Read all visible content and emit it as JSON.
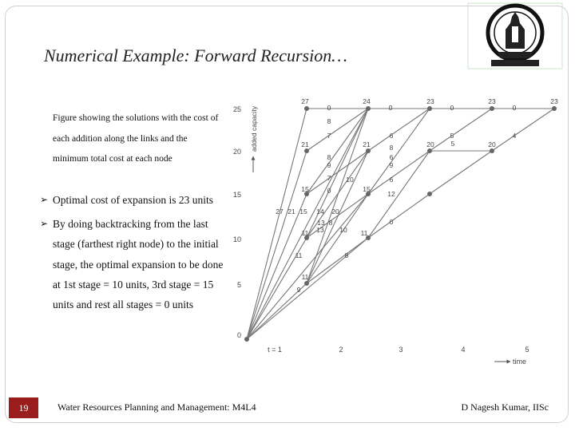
{
  "slide": {
    "title": "Numerical Example: Forward Recursion…",
    "caption": "Figure showing the solutions with the cost of each addition along the links and the minimum total cost at each node",
    "bullets": [
      "Optimal cost of expansion is 23 units",
      "By doing backtracking from the last stage (farthest right node) to the initial stage, the optimal expansion to be done at 1st stage = 10 units, 3rd stage = 15 units and rest all stages = 0 units"
    ],
    "bullet_glyph": "➢"
  },
  "logo": {
    "icon": "institute-seal-icon"
  },
  "figure": {
    "y_axis_label": "added capacity",
    "x_axis_label": "time",
    "y_ticks": [
      "0",
      "5",
      "10",
      "15",
      "20",
      "25"
    ],
    "x_ticks": [
      "t = 1",
      "2",
      "3",
      "4",
      "5"
    ],
    "node_labels": [
      "27",
      "24",
      "23",
      "23",
      "23",
      "21",
      "21",
      "20",
      "20",
      "15",
      "15",
      "14",
      "20",
      "11",
      "13",
      "10",
      "11",
      "11",
      "9"
    ],
    "link_labels": [
      "0",
      "0",
      "0",
      "0",
      "8",
      "7",
      "8",
      "9",
      "6",
      "8",
      "6",
      "5",
      "4",
      "7",
      "10",
      "9",
      "0",
      "6",
      "12",
      "27",
      "21",
      "15",
      "13",
      "8",
      "11",
      "9",
      "8",
      "0",
      "5"
    ]
  },
  "footer": {
    "slide_number": "19",
    "course": "Water Resources Planning and Management: M4L4",
    "author": "D Nagesh Kumar, IISc"
  }
}
